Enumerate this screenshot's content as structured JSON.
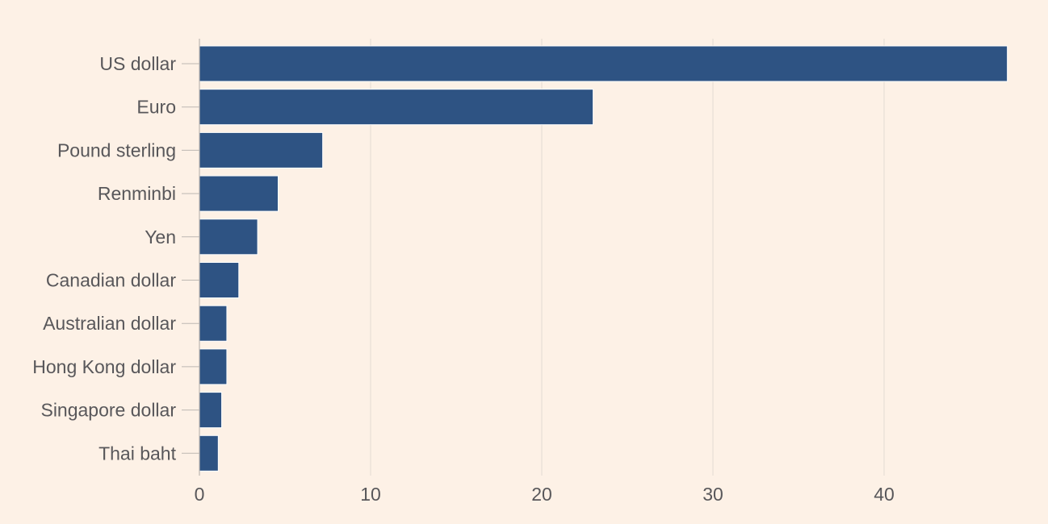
{
  "colors": {
    "background": "#fdf1e6",
    "bar": "#2e5383",
    "bar_outline": "#ffffff",
    "gridline": "#e3dbd3",
    "text": "#58575a"
  },
  "chart_data": {
    "type": "bar",
    "orientation": "horizontal",
    "title": "",
    "xlabel": "",
    "ylabel": "",
    "categories": [
      "US dollar",
      "Euro",
      "Pound sterling",
      "Renminbi",
      "Yen",
      "Canadian dollar",
      "Australian dollar",
      "Hong Kong dollar",
      "Singapore dollar",
      "Thai baht"
    ],
    "values": [
      47.2,
      23.0,
      7.2,
      4.6,
      3.4,
      2.3,
      1.6,
      1.6,
      1.3,
      1.1
    ],
    "xlim": [
      0,
      50
    ],
    "xticks": [
      0,
      10,
      20,
      30,
      40
    ],
    "grid": true
  }
}
